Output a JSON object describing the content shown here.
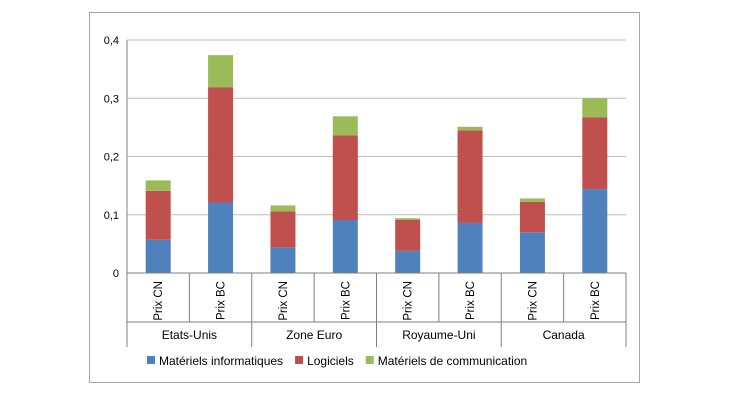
{
  "chart_data": {
    "type": "bar",
    "stacked": true,
    "title": "",
    "xlabel": "",
    "ylabel": "",
    "ylim": [
      0,
      0.4
    ],
    "yticks": [
      0,
      0.1,
      0.2,
      0.3,
      0.4
    ],
    "ytick_labels": [
      "0",
      "0,1",
      "0,2",
      "0,3",
      "0,4"
    ],
    "grid": true,
    "legend_position": "bottom",
    "groups": [
      "Etats-Unis",
      "Zone Euro",
      "Royaume-Uni",
      "Canada"
    ],
    "categories": [
      "Prix CN",
      "Prix BC",
      "Prix CN",
      "Prix BC",
      "Prix CN",
      "Prix BC",
      "Prix CN",
      "Prix BC"
    ],
    "series": [
      {
        "name": "Matériels informatiques",
        "color": "#4f81bd",
        "values": [
          0.057,
          0.121,
          0.044,
          0.091,
          0.038,
          0.086,
          0.07,
          0.144
        ]
      },
      {
        "name": "Logiciels",
        "color": "#c0504d",
        "values": [
          0.084,
          0.198,
          0.062,
          0.145,
          0.053,
          0.159,
          0.052,
          0.123
        ]
      },
      {
        "name": "Matériels de communication",
        "color": "#9bbb59",
        "values": [
          0.018,
          0.055,
          0.01,
          0.033,
          0.003,
          0.006,
          0.006,
          0.033
        ]
      }
    ]
  }
}
